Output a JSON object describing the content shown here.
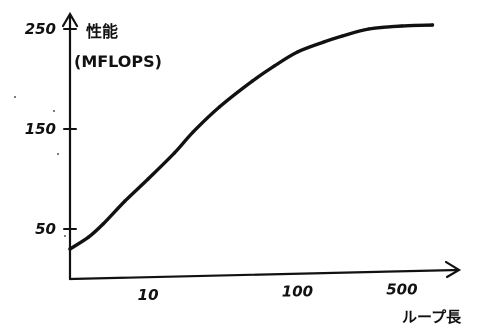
{
  "chart_data": {
    "type": "line",
    "title": "",
    "ylabel_line1": "性能",
    "ylabel_line2": "(MFLOPS)",
    "xlabel": "ループ長",
    "x_scale": "log",
    "y_ticks": [
      "250",
      "150",
      "50"
    ],
    "y_tick_values": [
      250,
      150,
      50
    ],
    "x_ticks": [
      "10",
      "100",
      "500"
    ],
    "x_tick_values": [
      10,
      100,
      500
    ],
    "xlim": [
      3,
      900
    ],
    "ylim": [
      0,
      270
    ],
    "grid": false,
    "series": [
      {
        "x": [
          3,
          4,
          5,
          7,
          10,
          15,
          20,
          30,
          50,
          70,
          100,
          150,
          200,
          300,
          500,
          800
        ],
        "y": [
          30,
          42,
          55,
          78,
          100,
          126,
          147,
          172,
          198,
          213,
          227,
          237,
          243,
          250,
          253,
          254
        ]
      }
    ]
  }
}
